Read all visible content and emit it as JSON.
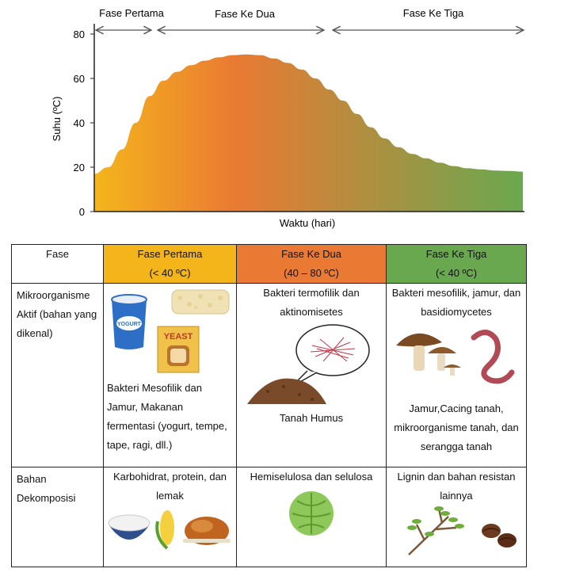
{
  "chart_data": {
    "type": "area",
    "xlabel": "Waktu (hari)",
    "ylabel": "Suhu (ºC)",
    "ylim": [
      0,
      85
    ],
    "yticks": [
      0,
      20,
      40,
      60,
      80
    ],
    "grid": false,
    "phases": [
      "Fase Pertama",
      "Fase Ke Dua",
      "Fase Ke Tiga"
    ],
    "values": [
      17,
      20,
      28,
      40,
      52,
      59,
      63,
      66,
      68,
      69.5,
      70.5,
      70.8,
      70.5,
      69,
      67,
      64,
      60,
      55,
      50,
      44,
      38,
      33,
      29,
      26,
      24,
      22,
      20.5,
      19.5,
      19,
      18.5,
      18.3,
      18
    ],
    "colors": [
      "#f4b51b",
      "#ea7a33",
      "#6aa84f"
    ]
  },
  "table": {
    "headers": {
      "fase": "Fase",
      "first": {
        "name": "Fase Pertama",
        "range": "(< 40 ºC)"
      },
      "second": {
        "name": "Fase Ke Dua",
        "range": "(40 – 80 ºC)"
      },
      "third": {
        "name": "Fase Ke Tiga",
        "range": "(< 40 ºC)"
      }
    },
    "row1": {
      "label": "Mikroorganisme Aktif (bahan yang dikenal)",
      "first": "Bakteri Mesofilik dan Jamur, Makanan fermentasi (yogurt, tempe, tape, ragi, dll.)",
      "second_top": "Bakteri termofilik dan aktinomisetes",
      "second_bottom": "Tanah Humus",
      "third_top": "Bakteri mesofilik, jamur, dan basidiomycetes",
      "third_bottom": "Jamur,Cacing tanah, mikroorganisme tanah, dan serangga tanah"
    },
    "row2": {
      "label": "Bahan Dekomposisi",
      "first": "Karbohidrat, protein, dan lemak",
      "second": "Hemiselulosa dan selulosa",
      "third": "Lignin dan bahan resistan lainnya"
    },
    "icon_text": {
      "yogurt": "YOGURT",
      "yeast": "YEAST"
    }
  }
}
